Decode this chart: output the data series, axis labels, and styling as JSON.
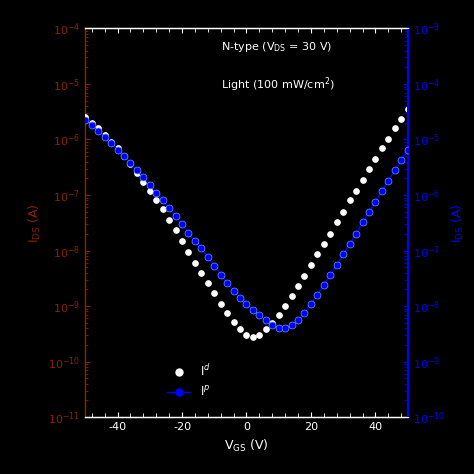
{
  "title_text": "N-type (V$_{\\mathrm{DS}}$ = 30 V)",
  "subtitle_text": "Light (100 mW/cm$^{2}$)",
  "xlabel": "V$_{\\mathrm{GS}}$ (V)",
  "ylabel_left": "I$_{\\mathrm{DS}}$ (A)",
  "ylabel_right": "I$_{\\mathrm{DS}}$ (A)",
  "background_color": "#000000",
  "left_spine_color": "#8B2500",
  "right_spine_color": "#0000FF",
  "white_color": "#ffffff",
  "xlim": [
    -50,
    50
  ],
  "ylim_dark": [
    1e-11,
    0.0001
  ],
  "ylim_light": [
    1e-10,
    0.001
  ],
  "xticks": [
    -40,
    -20,
    0,
    20,
    40
  ],
  "vgs_dark": [
    -50,
    -48,
    -46,
    -44,
    -42,
    -40,
    -38,
    -36,
    -34,
    -32,
    -30,
    -28,
    -26,
    -24,
    -22,
    -20,
    -18,
    -16,
    -14,
    -12,
    -10,
    -8,
    -6,
    -4,
    -2,
    0,
    2,
    4,
    6,
    8,
    10,
    12,
    14,
    16,
    18,
    20,
    22,
    24,
    26,
    28,
    30,
    32,
    34,
    36,
    38,
    40,
    42,
    44,
    46,
    48,
    50
  ],
  "ids_dark": [
    2.5e-06,
    2e-06,
    1.6e-06,
    1.2e-06,
    9e-07,
    7e-07,
    5e-07,
    3.6e-07,
    2.5e-07,
    1.7e-07,
    1.2e-07,
    8e-08,
    5.5e-08,
    3.5e-08,
    2.3e-08,
    1.5e-08,
    9.5e-09,
    6e-09,
    4e-09,
    2.6e-09,
    1.7e-09,
    1.1e-09,
    7.5e-10,
    5.2e-10,
    3.8e-10,
    3e-10,
    2.8e-10,
    3e-10,
    3.8e-10,
    5e-10,
    7e-10,
    1e-09,
    1.5e-09,
    2.3e-09,
    3.5e-09,
    5.5e-09,
    8.5e-09,
    1.3e-08,
    2e-08,
    3.2e-08,
    5e-08,
    8e-08,
    1.2e-07,
    1.9e-07,
    3e-07,
    4.5e-07,
    7e-07,
    1e-06,
    1.6e-06,
    2.3e-06,
    3.5e-06
  ],
  "vgs_light": [
    -50,
    -48,
    -46,
    -44,
    -42,
    -40,
    -38,
    -36,
    -34,
    -32,
    -30,
    -28,
    -26,
    -24,
    -22,
    -20,
    -18,
    -16,
    -14,
    -12,
    -10,
    -8,
    -6,
    -4,
    -2,
    0,
    2,
    4,
    6,
    8,
    10,
    12,
    14,
    16,
    18,
    20,
    22,
    24,
    26,
    28,
    30,
    32,
    34,
    36,
    38,
    40,
    42,
    44,
    46,
    48,
    50
  ],
  "ids_light": [
    2.2e-05,
    1.8e-05,
    1.4e-05,
    1.1e-05,
    8.5e-06,
    6.5e-06,
    5e-06,
    3.8e-06,
    2.8e-06,
    2.1e-06,
    1.5e-06,
    1.1e-06,
    8e-07,
    5.8e-07,
    4.2e-07,
    3e-07,
    2.1e-07,
    1.5e-07,
    1.1e-07,
    7.5e-08,
    5.3e-08,
    3.7e-08,
    2.6e-08,
    1.9e-08,
    1.4e-08,
    1.1e-08,
    8.5e-09,
    6.8e-09,
    5.5e-09,
    4.5e-09,
    4e-09,
    4e-09,
    4.5e-09,
    5.5e-09,
    7.5e-09,
    1.1e-08,
    1.6e-08,
    2.4e-08,
    3.6e-08,
    5.5e-08,
    8.5e-08,
    1.3e-07,
    2e-07,
    3.2e-07,
    5e-07,
    7.5e-07,
    1.2e-06,
    1.8e-06,
    2.8e-06,
    4.2e-06,
    6.5e-06
  ],
  "legend_dark": "I$^{d}$",
  "legend_light": "I$^{p}$"
}
